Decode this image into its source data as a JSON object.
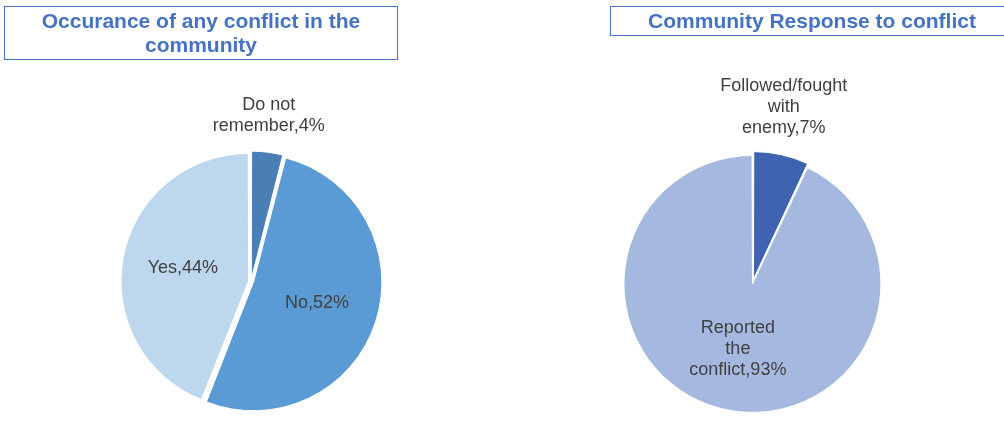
{
  "chart_data": [
    {
      "type": "pie",
      "title": "Occurance of any conflict in the community",
      "categories": [
        "Do not remember",
        "No",
        "Yes"
      ],
      "values": [
        4,
        52,
        44
      ],
      "colors": [
        "#4a7fb5",
        "#5b9bd5",
        "#bdd7ee"
      ],
      "value_labels": [
        "4%",
        "52%",
        "44%"
      ],
      "legend": false
    },
    {
      "type": "pie",
      "title": "Community Response to conflict",
      "categories": [
        "Followed/fought with enemy",
        "Reported the conflict"
      ],
      "values": [
        7,
        93
      ],
      "colors": [
        "#3e63b0",
        "#a5b9e0"
      ],
      "value_labels": [
        "7%",
        "93%"
      ],
      "legend": false
    }
  ]
}
